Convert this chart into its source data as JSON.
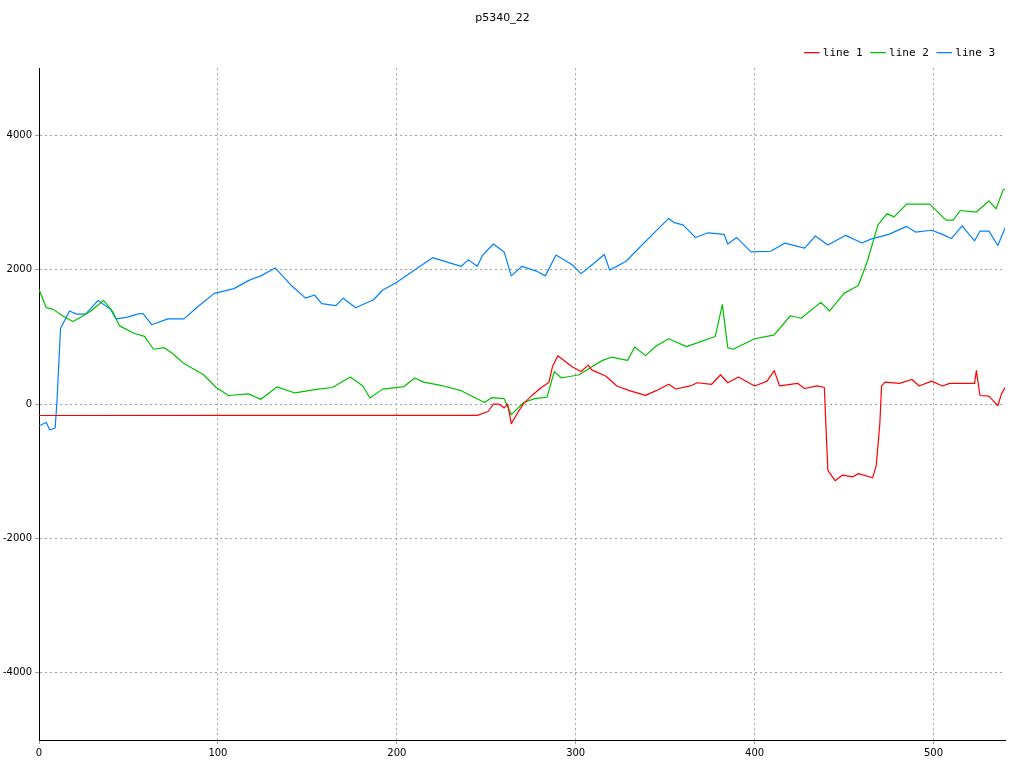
{
  "chart_data": {
    "type": "line",
    "title": "p5340_22",
    "xlim": [
      0,
      540
    ],
    "ylim": [
      -5000,
      5000
    ],
    "xticks": [
      0,
      100,
      200,
      300,
      400,
      500
    ],
    "yticks": [
      -4000,
      -2000,
      0,
      2000,
      4000
    ],
    "grid": true,
    "legend": "top right",
    "marker": "none",
    "line_style": "solid",
    "series": [
      {
        "name": "line 1",
        "color": "#ff0000",
        "x": [
          0,
          245,
          251,
          254,
          257,
          260,
          262,
          264,
          268,
          271,
          276,
          281,
          285,
          287,
          290,
          298,
          303,
          307,
          309,
          317,
          323,
          330,
          339,
          345,
          352,
          356,
          364,
          368,
          376,
          381,
          385,
          391,
          400,
          407,
          411,
          414,
          424,
          428,
          435,
          439,
          440,
          441,
          445,
          449,
          455,
          458,
          466,
          468,
          470,
          471,
          473,
          481,
          488,
          492,
          499,
          505,
          509,
          523,
          524,
          526,
          531,
          536,
          538,
          540
        ],
        "values": [
          -170,
          -167,
          -110,
          0,
          0,
          -57,
          0,
          -290,
          -110,
          10,
          140,
          250,
          320,
          555,
          720,
          555,
          485,
          580,
          510,
          415,
          270,
          200,
          130,
          200,
          295,
          225,
          270,
          318,
          295,
          437,
          318,
          403,
          270,
          342,
          499,
          270,
          309,
          232,
          270,
          247,
          -395,
          -987,
          -1140,
          -1058,
          -1083,
          -1035,
          -1097,
          -916,
          -299,
          270,
          327,
          309,
          366,
          270,
          342,
          270,
          309,
          309,
          499,
          128,
          118,
          -24,
          152,
          247
        ]
      },
      {
        "name": "line 2",
        "color": "#00c000",
        "x": [
          0,
          4,
          8,
          13,
          19,
          23,
          29,
          36,
          41,
          45,
          53,
          59,
          64,
          70,
          75,
          81,
          92,
          99,
          106,
          117,
          124,
          133,
          143,
          156,
          164,
          174,
          181,
          185,
          192,
          204,
          210,
          215,
          226,
          236,
          249,
          253,
          260,
          264,
          271,
          277,
          284,
          288,
          292,
          302,
          309,
          315,
          320,
          329,
          333,
          339,
          345,
          352,
          362,
          378,
          382,
          385,
          388,
          400,
          411,
          420,
          426,
          437,
          442,
          450,
          458,
          463,
          469,
          474,
          478,
          485,
          492,
          498,
          507,
          511,
          515,
          524,
          531,
          535,
          539,
          540
        ],
        "values": [
          1705,
          1435,
          1410,
          1315,
          1230,
          1290,
          1385,
          1543,
          1385,
          1164,
          1054,
          1007,
          816,
          840,
          745,
          603,
          437,
          247,
          128,
          152,
          71,
          256,
          166,
          223,
          247,
          403,
          270,
          90,
          223,
          261,
          389,
          327,
          270,
          200,
          24,
          95,
          81,
          -157,
          24,
          81,
          104,
          484,
          389,
          437,
          555,
          651,
          698,
          651,
          850,
          722,
          864,
          973,
          855,
          1007,
          1481,
          840,
          816,
          973,
          1030,
          1315,
          1278,
          1514,
          1386,
          1648,
          1766,
          2123,
          2668,
          2835,
          2787,
          2977,
          2977,
          2977,
          2739,
          2739,
          2882,
          2859,
          3024,
          2906,
          3191,
          3200
        ]
      },
      {
        "name": "line 3",
        "color": "#0080ff",
        "x": [
          0,
          4,
          6,
          9,
          10,
          12,
          17,
          21,
          26,
          33,
          40,
          43,
          49,
          55,
          58,
          63,
          72,
          81,
          89,
          98,
          109,
          117,
          124,
          132,
          141,
          149,
          154,
          158,
          166,
          170,
          177,
          187,
          192,
          200,
          213,
          220,
          230,
          236,
          240,
          245,
          248,
          254,
          260,
          264,
          270,
          278,
          283,
          289,
          298,
          303,
          307,
          316,
          319,
          328,
          335,
          343,
          352,
          355,
          360,
          367,
          374,
          383,
          385,
          390,
          398,
          409,
          417,
          428,
          434,
          441,
          451,
          460,
          465,
          475,
          485,
          490,
          499,
          505,
          510,
          516,
          523,
          526,
          531,
          536,
          540
        ],
        "values": [
          -323,
          -275,
          -385,
          -356,
          33,
          1125,
          1386,
          1339,
          1339,
          1543,
          1410,
          1268,
          1292,
          1339,
          1349,
          1182,
          1268,
          1268,
          1457,
          1648,
          1719,
          1838,
          1909,
          2027,
          1766,
          1577,
          1624,
          1496,
          1467,
          1577,
          1434,
          1553,
          1695,
          1813,
          2051,
          2180,
          2098,
          2051,
          2147,
          2051,
          2218,
          2383,
          2265,
          1909,
          2051,
          1980,
          1909,
          2218,
          2075,
          1942,
          2027,
          2227,
          1994,
          2123,
          2312,
          2526,
          2764,
          2702,
          2668,
          2479,
          2550,
          2526,
          2383,
          2479,
          2265,
          2275,
          2397,
          2322,
          2503,
          2369,
          2512,
          2397,
          2455,
          2526,
          2645,
          2560,
          2588,
          2526,
          2464,
          2654,
          2431,
          2574,
          2574,
          2360,
          2621
        ]
      }
    ]
  }
}
